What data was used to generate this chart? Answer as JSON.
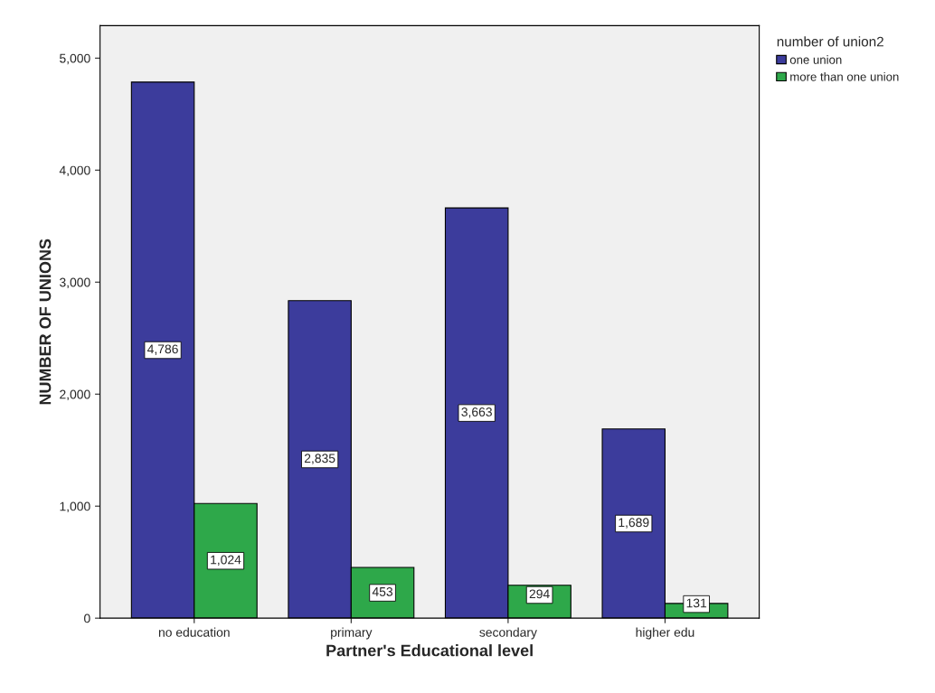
{
  "chart_data": {
    "type": "bar",
    "xlabel": "Partner's Educational level",
    "ylabel": "NUMBER OF UNIONS",
    "legend_title": "number of union2",
    "categories": [
      "no education",
      "primary",
      "secondary",
      "higher edu"
    ],
    "series": [
      {
        "name": "one union",
        "color": "#3c3c9c",
        "values": [
          4786,
          2835,
          3663,
          1689
        ],
        "value_labels": [
          "4,786",
          "2,835",
          "3,663",
          "1,689"
        ]
      },
      {
        "name": "more than one union",
        "color": "#2ea84a",
        "values": [
          1024,
          453,
          294,
          131
        ],
        "value_labels": [
          "1,024",
          "453",
          "294",
          "131"
        ]
      }
    ],
    "ylim": [
      0,
      5290
    ],
    "yticks": [
      0,
      {
        "value": 1000,
        "label": "1,000"
      },
      {
        "value": 2000,
        "label": "2,000"
      },
      {
        "value": 3000,
        "label": "3,000"
      },
      {
        "value": 4000,
        "label": "4,000"
      },
      {
        "value": 5000,
        "label": "5,000"
      }
    ],
    "legend": "top right"
  }
}
